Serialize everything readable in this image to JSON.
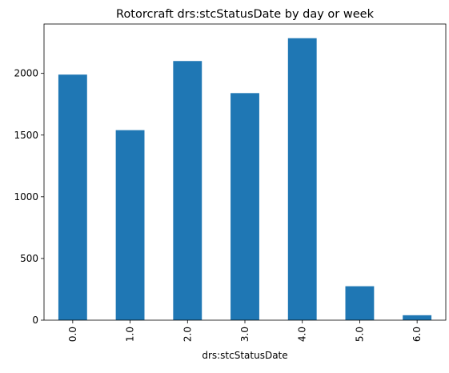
{
  "chart_data": {
    "type": "bar",
    "title": "Rotorcraft  drs:stcStatusDate by day or week",
    "xlabel": "drs:stcStatusDate",
    "ylabel": "",
    "categories": [
      "0.0",
      "1.0",
      "2.0",
      "3.0",
      "4.0",
      "5.0",
      "6.0"
    ],
    "values": [
      1990,
      1540,
      2100,
      1840,
      2285,
      275,
      40
    ],
    "ylim": [
      0,
      2400
    ],
    "yticks": [
      0,
      500,
      1000,
      1500,
      2000
    ],
    "ytick_labels": [
      "0",
      "500",
      "1000",
      "1500",
      "2000"
    ],
    "bar_color": "#1f77b4",
    "grid": false,
    "legend": "none"
  }
}
